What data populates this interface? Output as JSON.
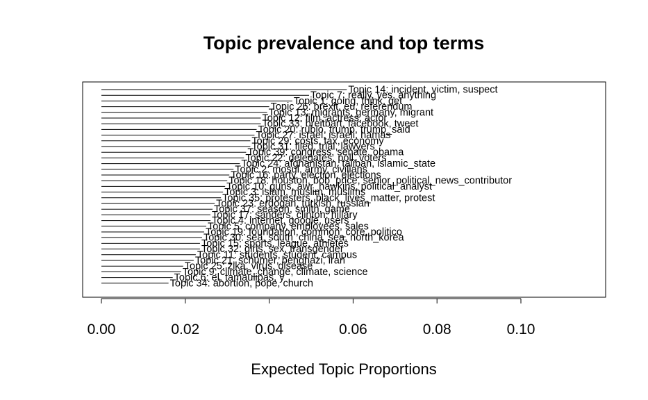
{
  "chart_data": {
    "type": "bar",
    "orientation": "horizontal",
    "title": "Topic prevalence and top terms",
    "xlabel": "Expected Topic Proportions",
    "ylabel": "",
    "xlim": [
      0,
      0.12
    ],
    "xticks": [
      0.0,
      0.02,
      0.04,
      0.06,
      0.08,
      0.1
    ],
    "xtick_labels": [
      "0.00",
      "0.02",
      "0.04",
      "0.06",
      "0.08",
      "0.10"
    ],
    "grid": false,
    "categories": [
      "Topic 14: incident, victim, suspect",
      "Topic 7: really, yes, anything",
      "Topic 1: going, think, get",
      "Topic 26: brexit, eu, referendum",
      "Topic 13: migrants, germany, migrant",
      "Topic 12: film, actress, actor",
      "Topic 33: breitbart, facebook, tweet",
      "Topic 20: rubio, trump, trump_said",
      "Topic 27: israel, israeli, hamas",
      "Topic 29: costs, tax, economy",
      "Topic 31: filed, trial, lawyers",
      "Topic 39: congress, senate, obama",
      "Topic 22: delegates, poll, voters",
      "Topic 24: afghanistan, taliban, islamic_state",
      "Topic 2: mosul, army, civilians",
      "Topic 16: party, election, elections",
      "Topic 18: houston, bob_price, senior_political_news_contributor",
      "Topic 10: guns, awr_hawkins, political_analyst",
      "Topic 3: islam, muslim, muslims",
      "Topic 35: protesters, black_lives_matter, protest",
      "Topic 23: erdogan, turkish, russian",
      "Topic 37: season, smith, game",
      "Topic 17: sanders, clinton, hillary",
      "Topic 4: internet, google, users",
      "Topic 5: company, employees, sales",
      "Topic 19: foundation, common_core, politico",
      "Topic 30: sea, south_china_sea, north_korea",
      "Topic 15: sports, league, athletes",
      "Topic 32: girls, sex, transgender",
      "Topic 11: students, student, campus",
      "Topic 21: schumer, benghazi, iran",
      "Topic 25: zika, virus, disease",
      "Topic 9: climate_change, climate, science",
      "Topic 6: el, tamaulipas, y",
      "Topic 34: abortion, pope, church"
    ],
    "values": [
      0.0585,
      0.0495,
      0.0455,
      0.04,
      0.0395,
      0.038,
      0.038,
      0.037,
      0.0365,
      0.0355,
      0.0355,
      0.0345,
      0.034,
      0.033,
      0.0315,
      0.0305,
      0.03,
      0.0295,
      0.029,
      0.0285,
      0.027,
      0.0265,
      0.026,
      0.026,
      0.025,
      0.0245,
      0.024,
      0.0235,
      0.0235,
      0.0225,
      0.022,
      0.0195,
      0.019,
      0.017,
      0.016
    ]
  }
}
